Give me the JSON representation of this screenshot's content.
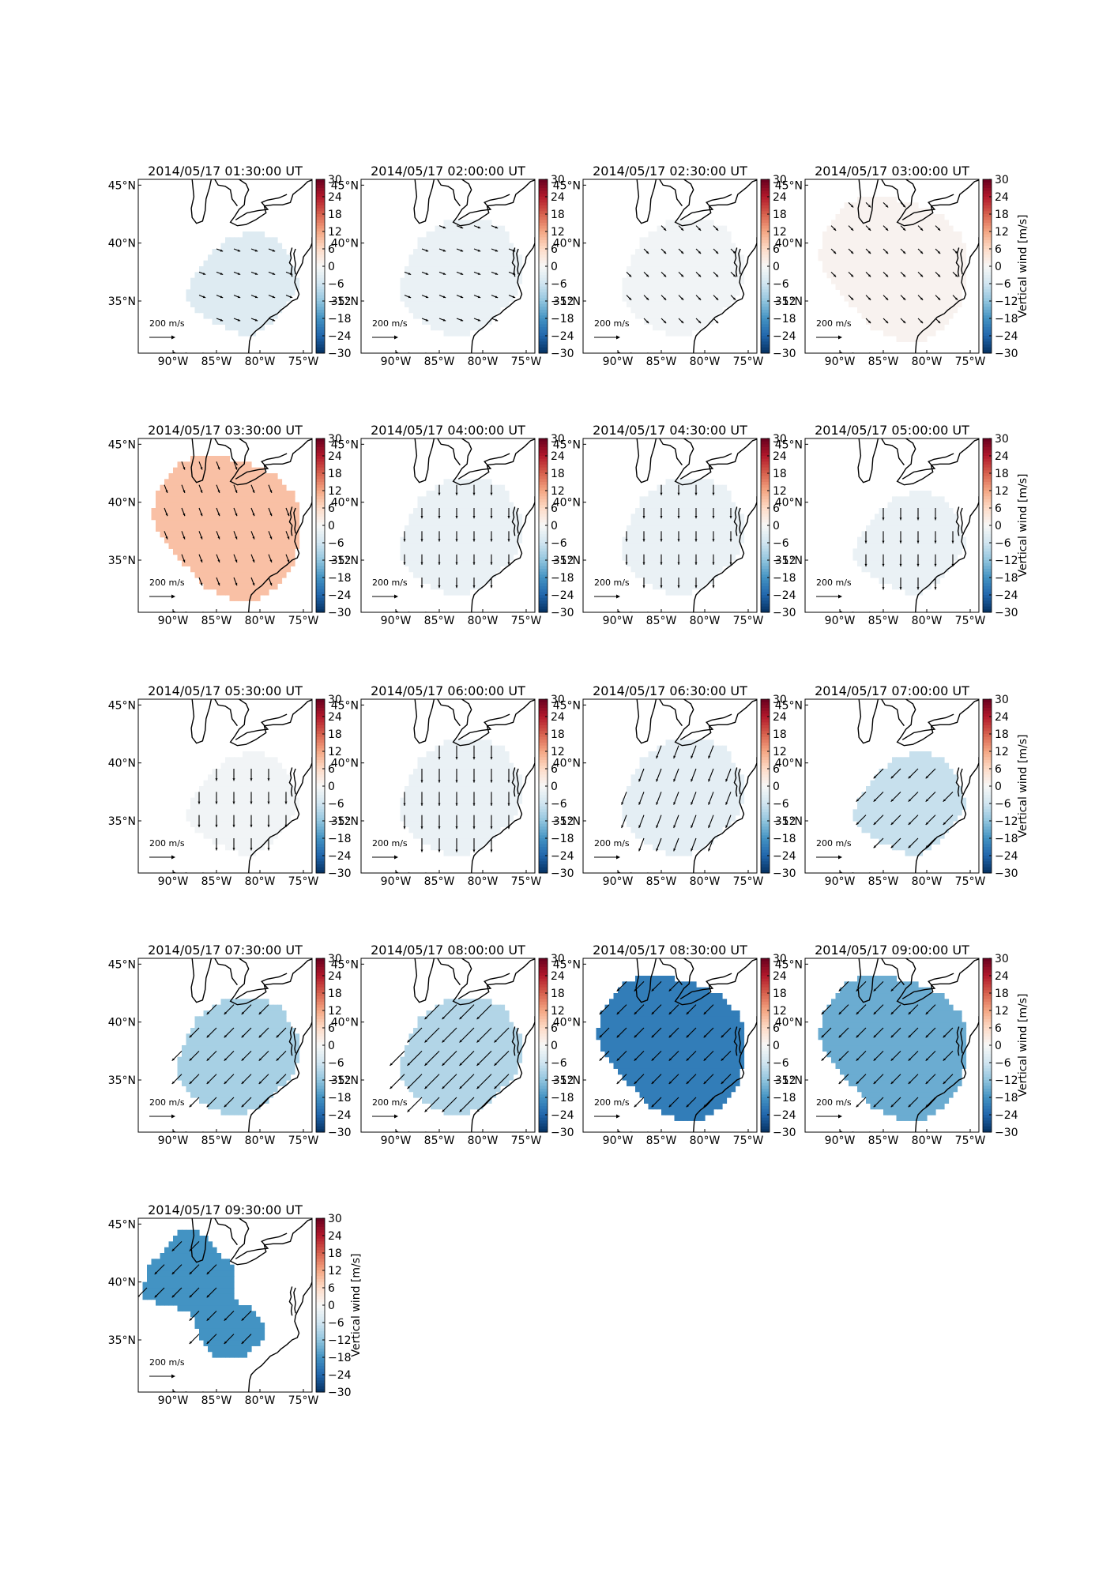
{
  "figure": {
    "colorbar_label": "Vertical wind [m/s]",
    "colorbar_ticks": [
      30,
      24,
      18,
      12,
      6,
      0,
      -6,
      -12,
      -18,
      -24,
      -30
    ],
    "colorbar_colors": [
      "#67001f",
      "#b2182b",
      "#d6604d",
      "#f4a582",
      "#fddbc7",
      "#f7f7f7",
      "#d1e5f0",
      "#92c5de",
      "#4393c3",
      "#2166ac",
      "#053061"
    ],
    "xticks": [
      "90°W",
      "85°W",
      "80°W",
      "75°W"
    ],
    "yticks": [
      "45°N",
      "40°N",
      "35°N"
    ],
    "reference_arrow_label": "200 m/s",
    "coastline_color": "#000000"
  },
  "chart_data": [
    {
      "type": "heatmap",
      "title": "2014/05/17 01:30:00 UT",
      "vertical_wind_ms": -4,
      "region": "small",
      "arrow_direction": "east-southeast",
      "arrow_speed_ms": 40
    },
    {
      "type": "heatmap",
      "title": "2014/05/17 02:00:00 UT",
      "vertical_wind_ms": -2,
      "region": "medium",
      "arrow_direction": "east-southeast",
      "arrow_speed_ms": 40
    },
    {
      "type": "heatmap",
      "title": "2014/05/17 02:30:00 UT",
      "vertical_wind_ms": -1,
      "region": "medium",
      "arrow_direction": "southeast",
      "arrow_speed_ms": 40
    },
    {
      "type": "heatmap",
      "title": "2014/05/17 03:00:00 UT",
      "vertical_wind_ms": 1,
      "region": "large",
      "arrow_direction": "southeast",
      "arrow_speed_ms": 40
    },
    {
      "type": "heatmap",
      "title": "2014/05/17 03:30:00 UT",
      "vertical_wind_ms": 9,
      "region": "large",
      "arrow_direction": "south-southeast",
      "arrow_speed_ms": 50
    },
    {
      "type": "heatmap",
      "title": "2014/05/17 04:00:00 UT",
      "vertical_wind_ms": -2,
      "region": "medium",
      "arrow_direction": "south",
      "arrow_speed_ms": 60
    },
    {
      "type": "heatmap",
      "title": "2014/05/17 04:30:00 UT",
      "vertical_wind_ms": -2,
      "region": "medium",
      "arrow_direction": "south",
      "arrow_speed_ms": 60
    },
    {
      "type": "heatmap",
      "title": "2014/05/17 05:00:00 UT",
      "vertical_wind_ms": -2,
      "region": "small",
      "arrow_direction": "south",
      "arrow_speed_ms": 70
    },
    {
      "type": "heatmap",
      "title": "2014/05/17 05:30:00 UT",
      "vertical_wind_ms": -1,
      "region": "small",
      "arrow_direction": "south",
      "arrow_speed_ms": 70
    },
    {
      "type": "heatmap",
      "title": "2014/05/17 06:00:00 UT",
      "vertical_wind_ms": -2,
      "region": "medium",
      "arrow_direction": "south",
      "arrow_speed_ms": 80
    },
    {
      "type": "heatmap",
      "title": "2014/05/17 06:30:00 UT",
      "vertical_wind_ms": -3,
      "region": "medium",
      "arrow_direction": "south-southwest",
      "arrow_speed_ms": 80
    },
    {
      "type": "heatmap",
      "title": "2014/05/17 07:00:00 UT",
      "vertical_wind_ms": -7,
      "region": "small",
      "arrow_direction": "southwest",
      "arrow_speed_ms": 80
    },
    {
      "type": "heatmap",
      "title": "2014/05/17 07:30:00 UT",
      "vertical_wind_ms": -10,
      "region": "medium",
      "arrow_direction": "southwest",
      "arrow_speed_ms": 80
    },
    {
      "type": "heatmap",
      "title": "2014/05/17 08:00:00 UT",
      "vertical_wind_ms": -9,
      "region": "medium",
      "arrow_direction": "southwest",
      "arrow_speed_ms": 120
    },
    {
      "type": "heatmap",
      "title": "2014/05/17 08:30:00 UT",
      "vertical_wind_ms": -21,
      "region": "large",
      "arrow_direction": "southwest",
      "arrow_speed_ms": 80
    },
    {
      "type": "heatmap",
      "title": "2014/05/17 09:00:00 UT",
      "vertical_wind_ms": -15,
      "region": "large",
      "arrow_direction": "southwest",
      "arrow_speed_ms": 80
    },
    {
      "type": "heatmap",
      "title": "2014/05/17 09:30:00 UT",
      "vertical_wind_ms": -18,
      "region": "west",
      "arrow_direction": "southwest",
      "arrow_speed_ms": 80
    }
  ]
}
